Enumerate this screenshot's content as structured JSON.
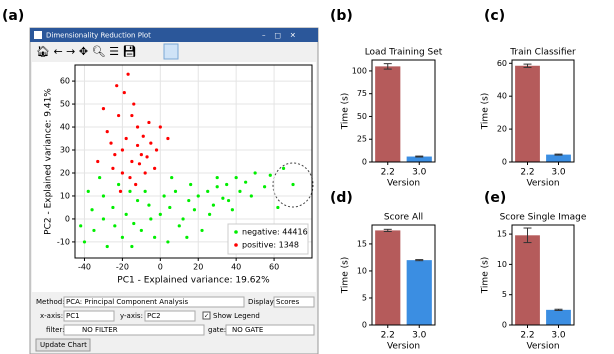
{
  "panels": [
    "(a)",
    "(b)",
    "(c)",
    "(d)",
    "(e)"
  ],
  "window": {
    "title": "Dimensionality Reduction Plot",
    "method_label": "Method:",
    "method": "PCA: Principal Component Analysis",
    "display_label": "Display:",
    "display": "Scores",
    "xaxis_label": "x-axis:",
    "xaxis": "PC1",
    "yaxis_label": "y-axis:",
    "yaxis": "PC2",
    "legend_toggle": "Show Legend",
    "filter_label": "filter:",
    "filter": "NO FILTER",
    "gate_label": "gate:",
    "gate": "NO GATE",
    "button": "Update Chart"
  },
  "chart_data": [
    {
      "type": "scatter",
      "xlabel": "PC1 - Explained variance: 19.62%",
      "ylabel": "PC2 - Explained variance: 9.41%",
      "xlim": [
        -45,
        80
      ],
      "ylim": [
        -17,
        67
      ],
      "xticks": [
        -40,
        -20,
        0,
        20,
        40,
        60
      ],
      "yticks": [
        -10,
        0,
        10,
        20,
        30,
        40,
        50,
        60
      ],
      "series": [
        {
          "name": "negative: 44416",
          "color": "#00ee00",
          "x": [
            -40,
            -35,
            -30,
            -25,
            -20,
            -15,
            -10,
            -5,
            0,
            5,
            10,
            15,
            20,
            25,
            30,
            35,
            40,
            45,
            50,
            55,
            -30,
            -28,
            -22,
            -18,
            -12,
            -8,
            -3,
            2,
            8,
            12,
            18,
            22,
            28,
            33,
            38,
            42,
            48,
            -36,
            -24,
            -14,
            -6,
            4,
            14,
            26,
            36,
            58,
            65,
            70,
            62,
            -42,
            -32,
            -38,
            16,
            6,
            -16,
            30
          ],
          "y": [
            -10,
            -5,
            0,
            5,
            -8,
            -12,
            -5,
            0,
            2,
            5,
            -3,
            8,
            10,
            12,
            14,
            15,
            18,
            16,
            20,
            14,
            10,
            -12,
            15,
            2,
            8,
            12,
            -8,
            10,
            12,
            0,
            4,
            -5,
            6,
            9,
            4,
            12,
            10,
            4,
            -3,
            -2,
            6,
            -10,
            -8,
            2,
            8,
            19,
            22,
            15,
            5,
            -3,
            18,
            12,
            15,
            18,
            12,
            18
          ]
        },
        {
          "name": "positive: 1348",
          "color": "#ff0000",
          "x": [
            -20,
            -15,
            -18,
            -10,
            -25,
            -12,
            -22,
            -8,
            -16,
            -5,
            -28,
            -14,
            -19,
            -24,
            -11,
            -6,
            -2,
            -17,
            -30,
            -13,
            -21,
            -9,
            -26,
            -3,
            0,
            -15,
            -20,
            -7,
            -23,
            -12,
            4,
            -33
          ],
          "y": [
            30,
            25,
            35,
            28,
            22,
            40,
            45,
            20,
            18,
            33,
            38,
            50,
            55,
            28,
            24,
            42,
            30,
            63,
            48,
            15,
            12,
            36,
            33,
            22,
            40,
            45,
            20,
            27,
            58,
            32,
            35,
            25
          ]
        }
      ]
    },
    {
      "type": "bar",
      "title": "Load Training Set",
      "xlabel": "Version",
      "ylabel": "Time (s)",
      "categories": [
        "2.2",
        "3.0"
      ],
      "values": [
        105,
        6
      ],
      "errors": [
        3,
        0.5
      ],
      "colors": [
        "#b55b5b",
        "#3b8ee2"
      ],
      "ylim": [
        0,
        112
      ],
      "yticks": [
        0,
        25,
        50,
        75,
        100
      ]
    },
    {
      "type": "bar",
      "title": "Train Classifier",
      "xlabel": "Version",
      "ylabel": "Time (s)",
      "categories": [
        "2.2",
        "3.0"
      ],
      "values": [
        58.5,
        4.5
      ],
      "errors": [
        1,
        0.3
      ],
      "colors": [
        "#b55b5b",
        "#3b8ee2"
      ],
      "ylim": [
        0,
        62
      ],
      "yticks": [
        0,
        20,
        40,
        60
      ]
    },
    {
      "type": "bar",
      "title": "Score All",
      "xlabel": "Version",
      "ylabel": "Time (s)",
      "categories": [
        "2.2",
        "3.0"
      ],
      "values": [
        17.5,
        12
      ],
      "errors": [
        0.2,
        0.1
      ],
      "colors": [
        "#b55b5b",
        "#3b8ee2"
      ],
      "ylim": [
        0,
        18.5
      ],
      "yticks": [
        0,
        5,
        10,
        15
      ]
    },
    {
      "type": "bar",
      "title": "Score Single Image",
      "xlabel": "Version",
      "ylabel": "Time (s)",
      "categories": [
        "2.2",
        "3.0"
      ],
      "values": [
        14.8,
        2.5
      ],
      "errors": [
        1.2,
        0.1
      ],
      "colors": [
        "#b55b5b",
        "#3b8ee2"
      ],
      "ylim": [
        0,
        16.5
      ],
      "yticks": [
        0,
        5,
        10,
        15
      ]
    }
  ]
}
